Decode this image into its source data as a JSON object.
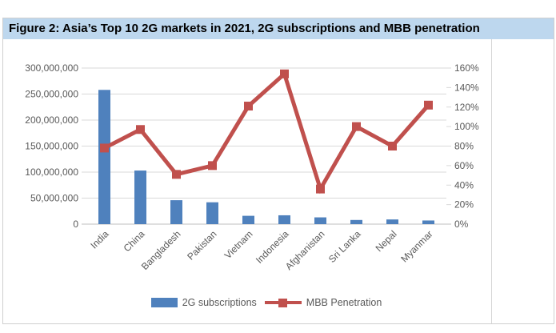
{
  "figure": {
    "title": "Figure 2:  Asia’s Top 10 2G markets in 2021, 2G subscriptions and MBB penetration"
  },
  "chart_data": {
    "type": "bar",
    "subtype": "combo-bar-line-dual-axis",
    "title": "Asia’s Top 10 2G markets in 2021, 2G subscriptions and MBB penetration",
    "categories": [
      "India",
      "China",
      "Bangladesh",
      "Pakistan",
      "Vietnam",
      "Indonesia",
      "Afghanistan",
      "Sri Lanka",
      "Nepal",
      "Myanmar"
    ],
    "series": [
      {
        "name": "2G subscriptions",
        "type": "bar",
        "axis": "left",
        "color": "#4F81BD",
        "values": [
          258000000,
          103000000,
          46000000,
          42000000,
          16000000,
          17000000,
          13000000,
          8000000,
          9000000,
          7000000
        ]
      },
      {
        "name": "MBB Penetration",
        "type": "line",
        "axis": "right",
        "color": "#C0504D",
        "values_pct": [
          78,
          97,
          51,
          60,
          121,
          154,
          36,
          100,
          80,
          122
        ]
      }
    ],
    "left_axis": {
      "min": 0,
      "max": 300000000,
      "tick_step": 50000000,
      "tick_labels": [
        "0",
        "50,000,000",
        "100,000,000",
        "150,000,000",
        "200,000,000",
        "250,000,000",
        "300,000,000"
      ]
    },
    "right_axis": {
      "min_pct": 0,
      "max_pct": 160,
      "tick_step_pct": 20,
      "tick_labels": [
        "0%",
        "20%",
        "40%",
        "60%",
        "80%",
        "100%",
        "120%",
        "140%",
        "160%"
      ]
    },
    "grid": true,
    "legend_position": "bottom"
  },
  "legend": {
    "items": [
      {
        "label": "2G subscriptions",
        "swatch": "bar",
        "color": "#4F81BD"
      },
      {
        "label": "MBB Penetration",
        "swatch": "line-marker",
        "color": "#C0504D"
      }
    ]
  },
  "colors": {
    "bar": "#4F81BD",
    "line": "#C0504D",
    "title_bg": "#BDD7EE",
    "grid": "#D9D9D9",
    "axis_line": "#BFBFBF",
    "axis_text": "#595959",
    "border": "#CFCFCF"
  }
}
